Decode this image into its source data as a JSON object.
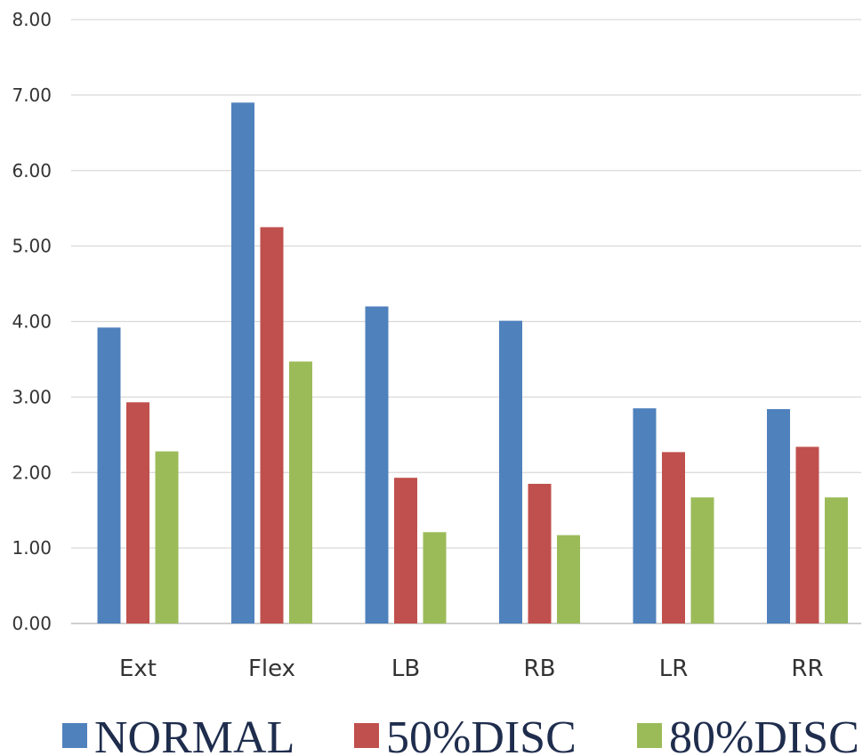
{
  "chart_data": {
    "type": "bar",
    "title": "",
    "xlabel": "",
    "ylabel": "",
    "categories": [
      "Ext",
      "Flex",
      "LB",
      "RB",
      "LR",
      "RR"
    ],
    "ylim": [
      0,
      8
    ],
    "yticks": [
      "0.00",
      "1.00",
      "2.00",
      "3.00",
      "4.00",
      "5.00",
      "6.00",
      "7.00",
      "8.00"
    ],
    "grid": true,
    "legend_position": "bottom",
    "series": [
      {
        "name": "NORMAL",
        "color": "#4f81bd",
        "values": [
          3.92,
          6.9,
          4.2,
          4.01,
          2.85,
          2.84
        ]
      },
      {
        "name": "50%DISC",
        "color": "#c0504d",
        "values": [
          2.93,
          5.25,
          1.93,
          1.85,
          2.27,
          2.34
        ]
      },
      {
        "name": "80%DISC",
        "color": "#9bbb59",
        "values": [
          2.28,
          3.47,
          1.21,
          1.17,
          1.67,
          1.67
        ]
      }
    ]
  }
}
